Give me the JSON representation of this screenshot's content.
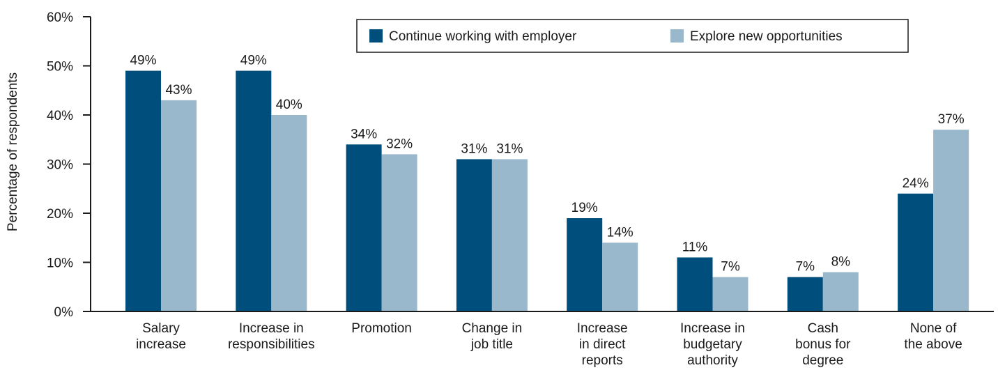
{
  "chart_data": {
    "type": "bar",
    "title": "",
    "xlabel": "",
    "ylabel": "Percentage of respondents",
    "ylim": [
      0,
      60
    ],
    "yticks": [
      0,
      10,
      20,
      30,
      40,
      50,
      60
    ],
    "ytick_suffix": "%",
    "value_suffix": "%",
    "legend_position": "top-right",
    "grid": false,
    "categories": [
      [
        "Salary",
        "increase"
      ],
      [
        "Increase in",
        "responsibilities"
      ],
      [
        "Promotion"
      ],
      [
        "Change in",
        "job title"
      ],
      [
        "Increase",
        "in direct",
        "reports"
      ],
      [
        "Increase in",
        "budgetary",
        "authority"
      ],
      [
        "Cash",
        "bonus for",
        "degree"
      ],
      [
        "None of",
        "the above"
      ]
    ],
    "series": [
      {
        "name": "Continue working with employer",
        "color": "#004e7c",
        "values": [
          49,
          49,
          34,
          31,
          19,
          11,
          7,
          24
        ]
      },
      {
        "name": "Explore new opportunities",
        "color": "#9ab8cc",
        "values": [
          43,
          40,
          32,
          31,
          14,
          7,
          8,
          37
        ]
      }
    ]
  }
}
